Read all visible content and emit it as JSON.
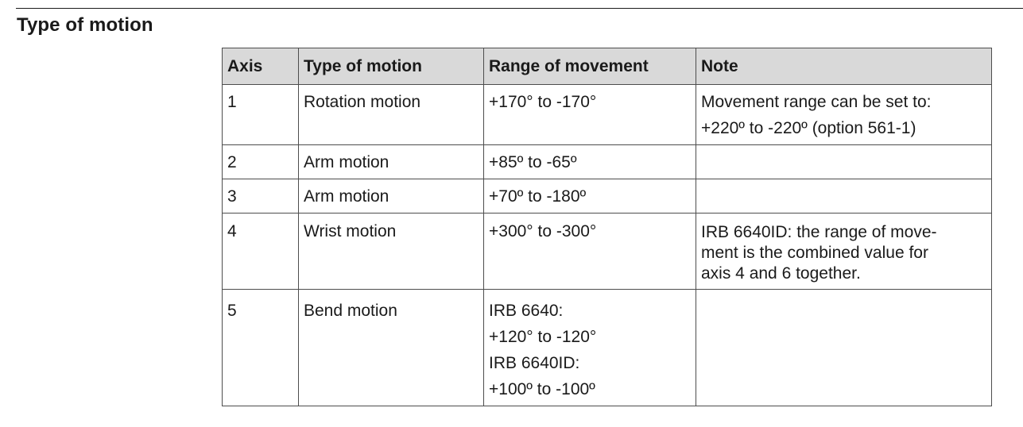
{
  "section": {
    "title": "Type of motion"
  },
  "table": {
    "headers": [
      "Axis",
      "Type of motion",
      "Range of movement",
      "Note"
    ],
    "rows": [
      {
        "axis": "1",
        "type": "Rotation motion",
        "range": [
          "+170° to -170°"
        ],
        "note": [
          "Movement range can be set to:",
          "+220º to -220º (option 561-1)"
        ]
      },
      {
        "axis": "2",
        "type": "Arm motion",
        "range": [
          "+85º to -65º"
        ],
        "note": []
      },
      {
        "axis": "3",
        "type": "Arm motion",
        "range": [
          "+70º to -180º"
        ],
        "note": []
      },
      {
        "axis": "4",
        "type": "Wrist motion",
        "range": [
          "+300° to -300°"
        ],
        "note": [
          "IRB 6640ID: the range of move-",
          "ment is the combined value for",
          "axis 4 and 6 together."
        ]
      },
      {
        "axis": "5",
        "type": "Bend motion",
        "range": [
          "IRB 6640:",
          "+120° to -120°",
          "IRB 6640ID:",
          "+100º to -100º"
        ],
        "note": []
      }
    ]
  }
}
